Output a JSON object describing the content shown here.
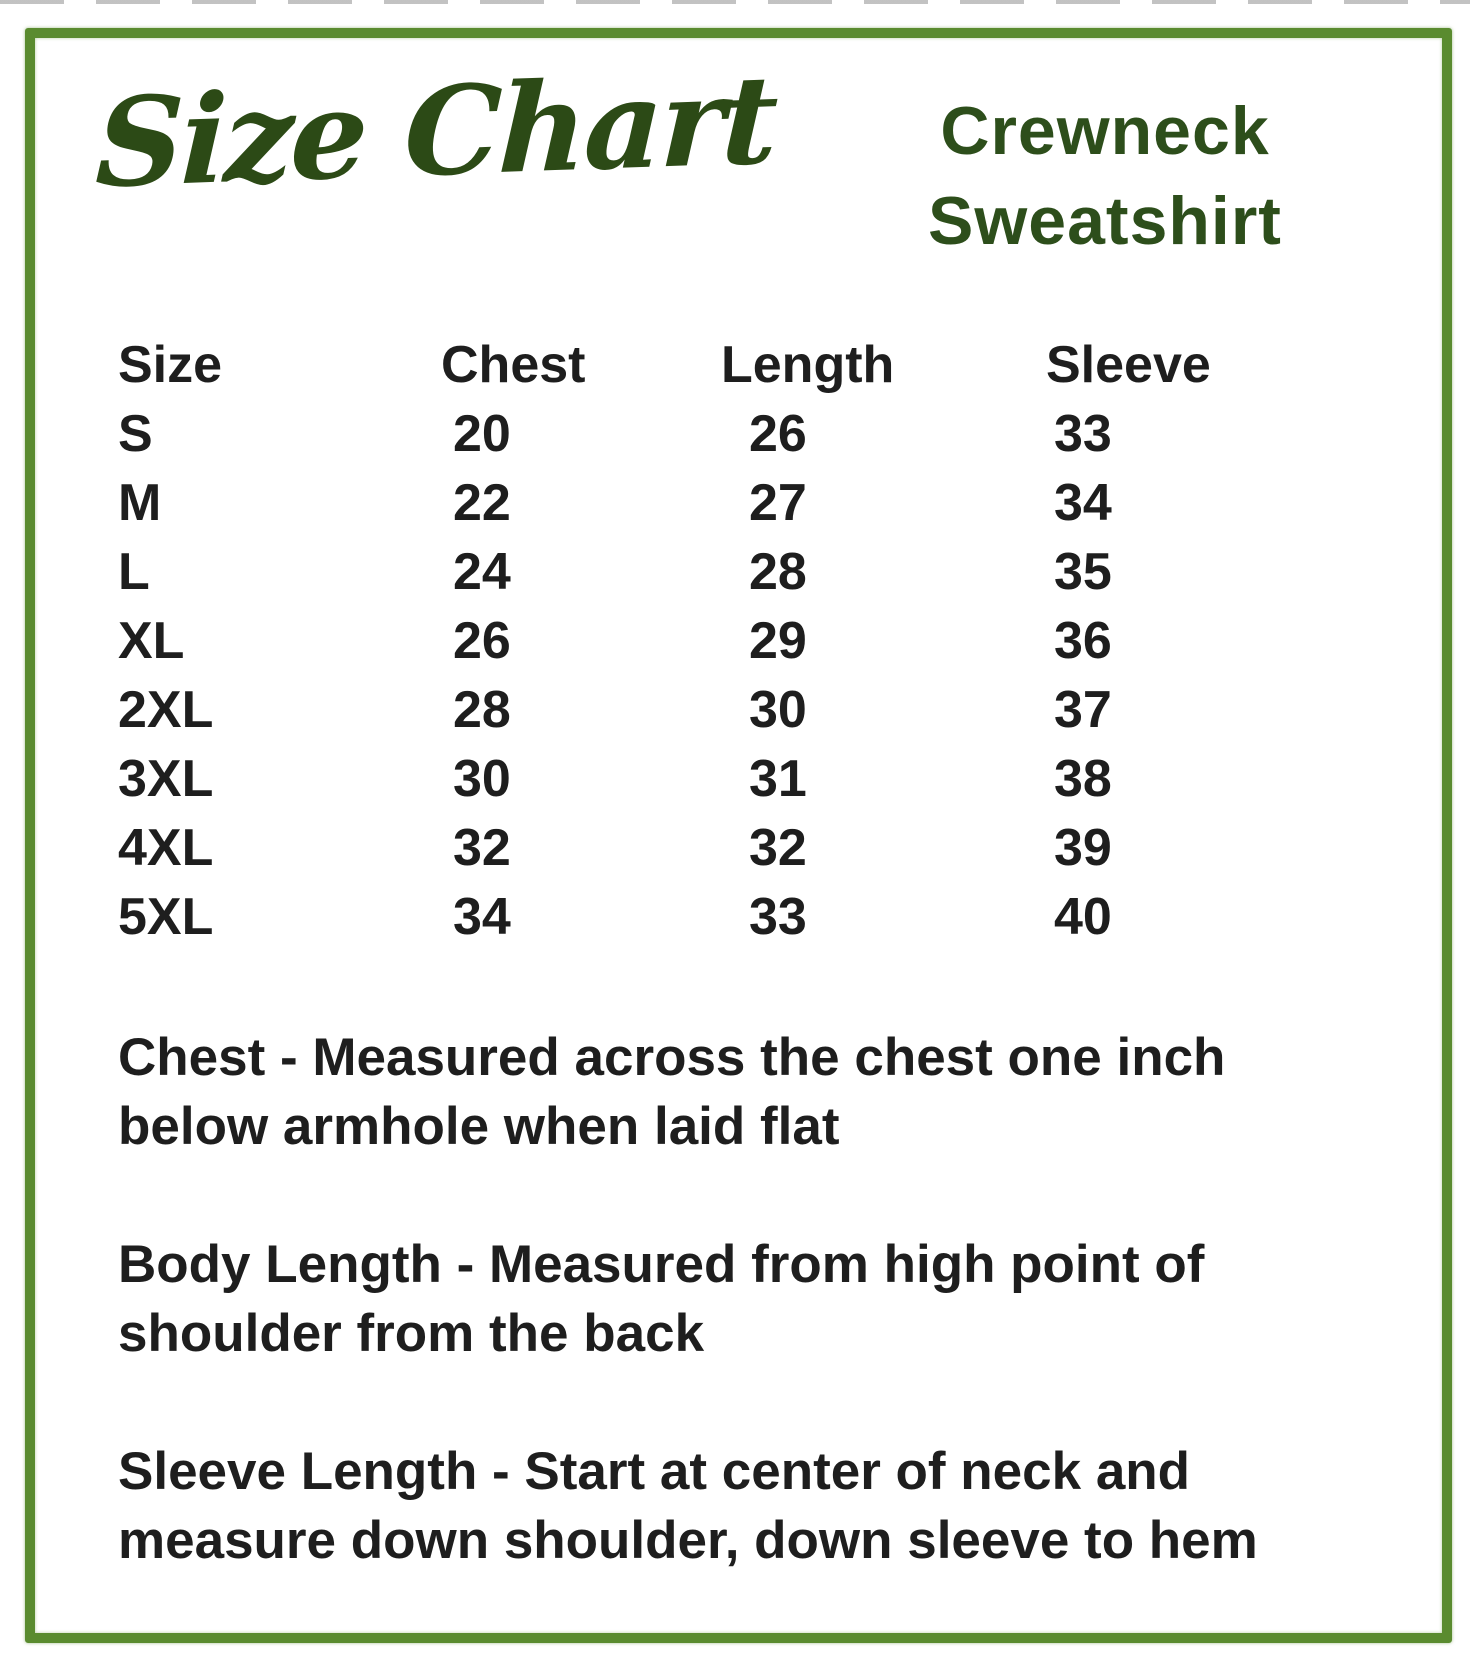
{
  "header": {
    "script_title": "Size Chart",
    "product_line1": "Crewneck",
    "product_line2": "Sweatshirt"
  },
  "table": {
    "columns": [
      "Size",
      "Chest",
      "Length",
      "Sleeve"
    ],
    "rows": [
      [
        "S",
        "20",
        "26",
        "33"
      ],
      [
        "M",
        "22",
        "27",
        "34"
      ],
      [
        "L",
        "24",
        "28",
        "35"
      ],
      [
        "XL",
        "26",
        "29",
        "36"
      ],
      [
        "2XL",
        "28",
        "30",
        "37"
      ],
      [
        "3XL",
        "30",
        "31",
        "38"
      ],
      [
        "4XL",
        "32",
        "32",
        "39"
      ],
      [
        "5XL",
        "34",
        "33",
        "40"
      ]
    ]
  },
  "notes": [
    {
      "id": "chest",
      "lines": [
        "Chest - Measured across the chest one inch",
        "below armhole when laid flat"
      ]
    },
    {
      "id": "body-length",
      "lines": [
        "Body Length - Measured from high point of",
        "shoulder from the back"
      ]
    },
    {
      "id": "sleeve-length",
      "lines": [
        "Sleeve Length - Start at center of neck and",
        "measure down shoulder, down sleeve to hem"
      ]
    }
  ],
  "colors": {
    "frame_green": "#5a8b2f",
    "title_green": "#2c4a16",
    "product_green": "#2d4e1b",
    "ink": "#1e1e1e",
    "background": "#ffffff"
  }
}
